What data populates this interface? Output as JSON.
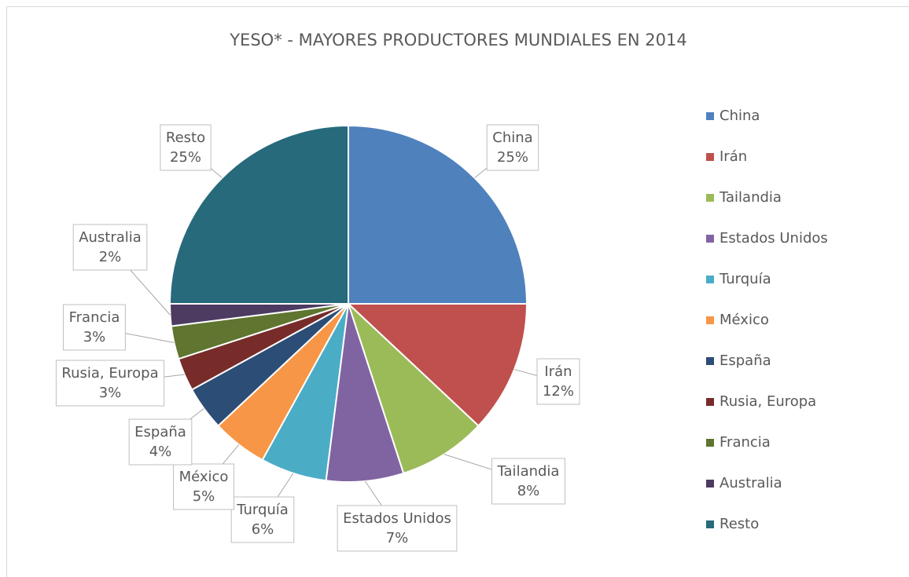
{
  "chart_data": {
    "type": "pie",
    "title": "YESO* - MAYORES PRODUCTORES MUNDIALES EN 2014",
    "categories": [
      "China",
      "Irán",
      "Tailandia",
      "Estados Unidos",
      "Turquía",
      "México",
      "España",
      "Rusia, Europa",
      "Francia",
      "Australia",
      "Resto"
    ],
    "values": [
      25,
      12,
      8,
      7,
      6,
      5,
      4,
      3,
      3,
      2,
      25
    ],
    "value_labels": [
      "25%",
      "12%",
      "8%",
      "7%",
      "6%",
      "5%",
      "4%",
      "3%",
      "3%",
      "2%",
      "25%"
    ],
    "colors": [
      "#4f81bd",
      "#c0504d",
      "#9bbb59",
      "#8064a2",
      "#4bacc6",
      "#f79646",
      "#2c4d75",
      "#772c2a",
      "#5f7530",
      "#4d3b62",
      "#276a7c"
    ],
    "legend": "right"
  }
}
